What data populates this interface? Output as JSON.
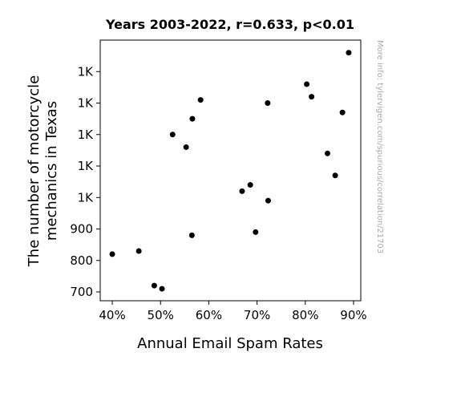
{
  "chart_data": {
    "type": "scatter",
    "title": "Years 2003-2022, r=0.633, p<0.01",
    "xlabel": "Annual Email Spam Rates",
    "ylabel_lines": [
      "The number of motorcycle",
      "mechanics in Texas"
    ],
    "watermark": "More info: tylervigen.com/spurious/correlation/21703",
    "xlim": [
      0.375,
      0.915
    ],
    "ylim": [
      672,
      1500
    ],
    "x_ticks": [
      {
        "value": 0.4,
        "label": "40%"
      },
      {
        "value": 0.5,
        "label": "50%"
      },
      {
        "value": 0.6,
        "label": "60%"
      },
      {
        "value": 0.7,
        "label": "70%"
      },
      {
        "value": 0.8,
        "label": "80%"
      },
      {
        "value": 0.9,
        "label": "90%"
      }
    ],
    "y_ticks": [
      {
        "value": 700,
        "label": "700"
      },
      {
        "value": 800,
        "label": "800"
      },
      {
        "value": 900,
        "label": "900"
      },
      {
        "value": 1000,
        "label": "1K"
      },
      {
        "value": 1100,
        "label": "1K"
      },
      {
        "value": 1200,
        "label": "1K"
      },
      {
        "value": 1300,
        "label": "1K"
      },
      {
        "value": 1400,
        "label": "1K"
      }
    ],
    "points": [
      {
        "x": 0.4,
        "y": 820
      },
      {
        "x": 0.455,
        "y": 830
      },
      {
        "x": 0.487,
        "y": 720
      },
      {
        "x": 0.503,
        "y": 710
      },
      {
        "x": 0.525,
        "y": 1200
      },
      {
        "x": 0.553,
        "y": 1160
      },
      {
        "x": 0.565,
        "y": 880
      },
      {
        "x": 0.566,
        "y": 1250
      },
      {
        "x": 0.583,
        "y": 1310
      },
      {
        "x": 0.669,
        "y": 1020
      },
      {
        "x": 0.686,
        "y": 1040
      },
      {
        "x": 0.697,
        "y": 890
      },
      {
        "x": 0.722,
        "y": 1300
      },
      {
        "x": 0.723,
        "y": 990
      },
      {
        "x": 0.803,
        "y": 1360
      },
      {
        "x": 0.813,
        "y": 1320
      },
      {
        "x": 0.846,
        "y": 1140
      },
      {
        "x": 0.862,
        "y": 1070
      },
      {
        "x": 0.877,
        "y": 1270
      },
      {
        "x": 0.89,
        "y": 1460
      }
    ]
  }
}
